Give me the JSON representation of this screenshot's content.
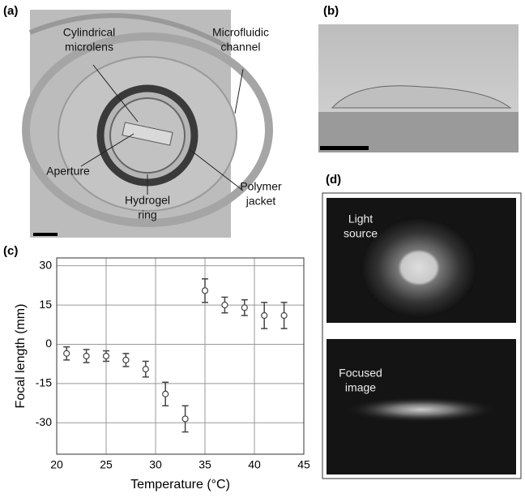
{
  "panel_labels": [
    "(a)",
    "(b)",
    "(c)",
    "(d)"
  ],
  "panel_a_annotations": [
    [
      "Cylindrical",
      "microlens"
    ],
    [
      "Microfluidic",
      "channel"
    ],
    [
      "Aperture"
    ],
    [
      "Hydrogel",
      "ring"
    ],
    [
      "Polymer",
      "jacket"
    ]
  ],
  "panel_d_annotations": [
    [
      "Light",
      "source"
    ],
    [
      "Focused",
      "image"
    ]
  ],
  "chart_data": {
    "type": "scatter",
    "xlabel": "Temperature (°C)",
    "ylabel": "Focal length (mm)",
    "x": [
      21,
      23,
      25,
      27,
      29,
      31,
      33,
      35,
      37,
      39,
      41,
      43
    ],
    "values": [
      -3.5,
      -4.5,
      -4.5,
      -6,
      -9.5,
      -19,
      -28.5,
      20.5,
      15,
      14,
      11,
      11
    ],
    "errors": [
      2.5,
      2.5,
      2,
      2.5,
      3,
      4.5,
      5,
      4.5,
      3,
      3,
      5,
      5
    ],
    "xlim": [
      20,
      45
    ],
    "xticks": [
      20,
      25,
      30,
      35,
      40,
      45
    ],
    "ylim": [
      -42,
      33
    ],
    "yticks": [
      30,
      15,
      0,
      -15,
      -30
    ],
    "grid": true,
    "marker_color": "#444"
  }
}
